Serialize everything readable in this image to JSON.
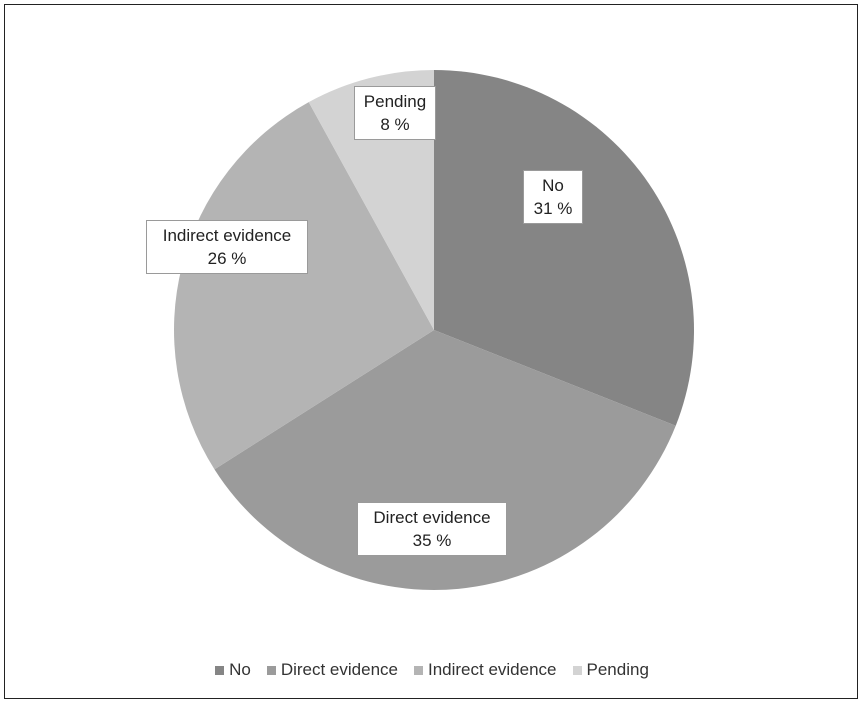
{
  "chart_data": {
    "type": "pie",
    "categories": [
      "No",
      "Direct evidence",
      "Indirect evidence",
      "Pending"
    ],
    "values": [
      31,
      35,
      26,
      8
    ],
    "unit": "%",
    "value_labels": [
      "31 %",
      "35 %",
      "26 %",
      "8 %"
    ],
    "colors": [
      "#858585",
      "#9b9b9b",
      "#b4b4b4",
      "#d3d3d3"
    ],
    "legend_position": "bottom",
    "start_angle": "12 o'clock, clockwise"
  }
}
